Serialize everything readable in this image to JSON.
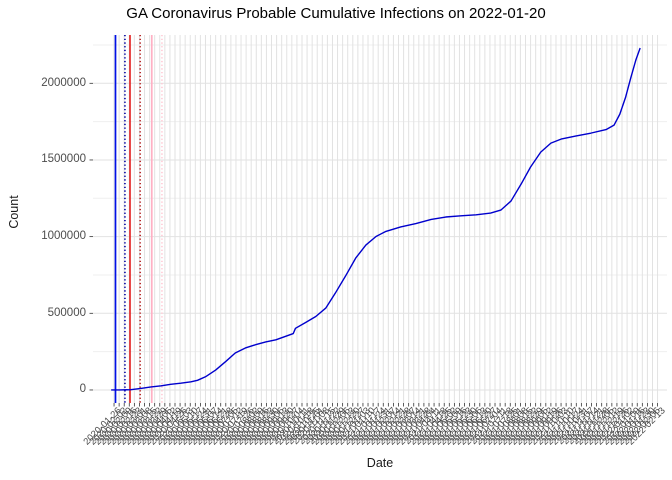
{
  "chart_data": {
    "type": "line",
    "title": "GA Coronavirus Probable Cumulative Infections on 2022-01-20",
    "xlabel": "Date",
    "ylabel": "Count",
    "x_domain": [
      "2019-12-28",
      "2022-02-26"
    ],
    "ylim": [
      -85000,
      2315000
    ],
    "grid": "on",
    "legend": "none",
    "colors": {
      "background": "#FFFFFF",
      "grid_major": "#E2E2E2",
      "grid_minor": "#EFEFEF",
      "tick_mark": "#333333",
      "axis_text": "#4D4D4D",
      "title_text": "#000000",
      "series_line": "#0000CD"
    },
    "y_ticks": [
      {
        "value": 0,
        "label": "0"
      },
      {
        "value": 500000,
        "label": "500000"
      },
      {
        "value": 1000000,
        "label": "1000000"
      },
      {
        "value": 1500000,
        "label": "1500000"
      },
      {
        "value": 2000000,
        "label": "2000000"
      }
    ],
    "y_minor_ticks": [
      250000,
      750000,
      1250000,
      1750000,
      2250000
    ],
    "x_ticks": [
      "2020-01-26",
      "2020-02-02",
      "2020-02-09",
      "2020-02-16",
      "2020-02-23",
      "2020-03-01",
      "2020-03-08",
      "2020-03-15",
      "2020-03-22",
      "2020-03-29",
      "2020-04-05",
      "2020-04-12",
      "2020-04-19",
      "2020-04-26",
      "2020-05-03",
      "2020-05-10",
      "2020-05-17",
      "2020-05-24",
      "2020-05-31",
      "2020-06-07",
      "2020-06-14",
      "2020-06-21",
      "2020-06-28",
      "2020-07-05",
      "2020-07-12",
      "2020-07-19",
      "2020-07-26",
      "2020-08-02",
      "2020-08-09",
      "2020-08-16",
      "2020-08-23",
      "2020-08-30",
      "2020-09-06",
      "2020-09-13",
      "2020-09-20",
      "2020-09-27",
      "2020-10-04",
      "2020-10-11",
      "2020-10-18",
      "2020-10-25",
      "2020-11-01",
      "2020-11-08",
      "2020-11-15",
      "2020-11-22",
      "2020-11-29",
      "2020-12-06",
      "2020-12-13",
      "2020-12-20",
      "2020-12-27",
      "2021-01-03",
      "2021-01-10",
      "2021-01-17",
      "2021-01-24",
      "2021-01-31",
      "2021-02-07",
      "2021-02-14",
      "2021-02-21",
      "2021-02-28",
      "2021-03-07",
      "2021-03-14",
      "2021-03-21",
      "2021-03-28",
      "2021-04-04",
      "2021-04-11",
      "2021-04-18",
      "2021-04-25",
      "2021-05-02",
      "2021-05-09",
      "2021-05-16",
      "2021-05-23",
      "2021-05-30",
      "2021-06-06",
      "2021-06-13",
      "2021-06-20",
      "2021-06-27",
      "2021-07-04",
      "2021-07-11",
      "2021-07-18",
      "2021-07-25",
      "2021-08-01",
      "2021-08-08",
      "2021-08-15",
      "2021-08-22",
      "2021-08-29",
      "2021-09-05",
      "2021-09-12",
      "2021-09-19",
      "2021-09-26",
      "2021-10-03",
      "2021-10-10",
      "2021-10-17",
      "2021-10-24",
      "2021-10-31",
      "2021-11-07",
      "2021-11-14",
      "2021-11-21",
      "2021-11-28",
      "2021-12-05",
      "2021-12-12",
      "2021-12-19",
      "2021-12-26",
      "2022-01-02",
      "2022-01-09",
      "2022-01-16",
      "2022-01-23",
      "2022-01-30",
      "2022-02-06",
      "2022-02-13"
    ],
    "vlines": [
      {
        "name": "vline-blue-solid",
        "date": "2020-01-28",
        "style": "solid",
        "color": "#0010E6",
        "width": 1.7
      },
      {
        "name": "vline-blue-dotted",
        "date": "2020-02-10",
        "style": "dotted",
        "color": "#0000A0",
        "width": 1.6
      },
      {
        "name": "vline-red-solid",
        "date": "2020-02-17",
        "style": "solid",
        "color": "#E01010",
        "width": 1.5
      },
      {
        "name": "vline-red-dotted",
        "date": "2020-03-02",
        "style": "dotted",
        "color": "#B22222",
        "width": 1.6
      },
      {
        "name": "vline-pink-solid",
        "date": "2020-03-18",
        "style": "solid",
        "color": "#FFB0C4",
        "width": 1.7
      },
      {
        "name": "vline-pink-dotted",
        "date": "2020-04-01",
        "style": "dotted",
        "color": "#FFC9D4",
        "width": 1.6
      }
    ],
    "series": [
      {
        "name": "probable-cumulative-infections",
        "color": "#0000CD",
        "width": 1.4,
        "points": [
          [
            "2020-01-22",
            0
          ],
          [
            "2020-02-03",
            0
          ],
          [
            "2020-02-18",
            2000
          ],
          [
            "2020-03-03",
            10000
          ],
          [
            "2020-03-17",
            20000
          ],
          [
            "2020-03-31",
            27000
          ],
          [
            "2020-04-13",
            37000
          ],
          [
            "2020-04-27",
            44000
          ],
          [
            "2020-05-11",
            53000
          ],
          [
            "2020-05-20",
            63000
          ],
          [
            "2020-05-31",
            86000
          ],
          [
            "2020-06-14",
            130000
          ],
          [
            "2020-06-28",
            186000
          ],
          [
            "2020-07-11",
            241000
          ],
          [
            "2020-07-25",
            274000
          ],
          [
            "2020-08-08",
            295000
          ],
          [
            "2020-08-22",
            313000
          ],
          [
            "2020-09-05",
            327000
          ],
          [
            "2020-09-18",
            349000
          ],
          [
            "2020-09-29",
            368000
          ],
          [
            "2020-10-02",
            402000
          ],
          [
            "2020-10-16",
            440000
          ],
          [
            "2020-10-30",
            479000
          ],
          [
            "2020-11-13",
            535000
          ],
          [
            "2020-11-26",
            632000
          ],
          [
            "2020-12-10",
            743000
          ],
          [
            "2020-12-24",
            860000
          ],
          [
            "2021-01-07",
            945000
          ],
          [
            "2021-01-21",
            1001000
          ],
          [
            "2021-02-03",
            1033000
          ],
          [
            "2021-02-24",
            1063000
          ],
          [
            "2021-03-17",
            1085000
          ],
          [
            "2021-04-07",
            1112000
          ],
          [
            "2021-04-27",
            1128000
          ],
          [
            "2021-05-18",
            1136000
          ],
          [
            "2021-06-08",
            1142000
          ],
          [
            "2021-06-28",
            1154000
          ],
          [
            "2021-07-12",
            1173000
          ],
          [
            "2021-07-26",
            1232000
          ],
          [
            "2021-08-09",
            1343000
          ],
          [
            "2021-08-22",
            1454000
          ],
          [
            "2021-09-05",
            1551000
          ],
          [
            "2021-09-19",
            1610000
          ],
          [
            "2021-10-03",
            1636000
          ],
          [
            "2021-10-23",
            1656000
          ],
          [
            "2021-11-13",
            1675000
          ],
          [
            "2021-12-04",
            1698000
          ],
          [
            "2021-12-15",
            1727000
          ],
          [
            "2021-12-23",
            1799000
          ],
          [
            "2021-12-31",
            1910000
          ],
          [
            "2022-01-07",
            2034000
          ],
          [
            "2022-01-14",
            2151000
          ],
          [
            "2022-01-20",
            2230000
          ]
        ]
      }
    ]
  }
}
